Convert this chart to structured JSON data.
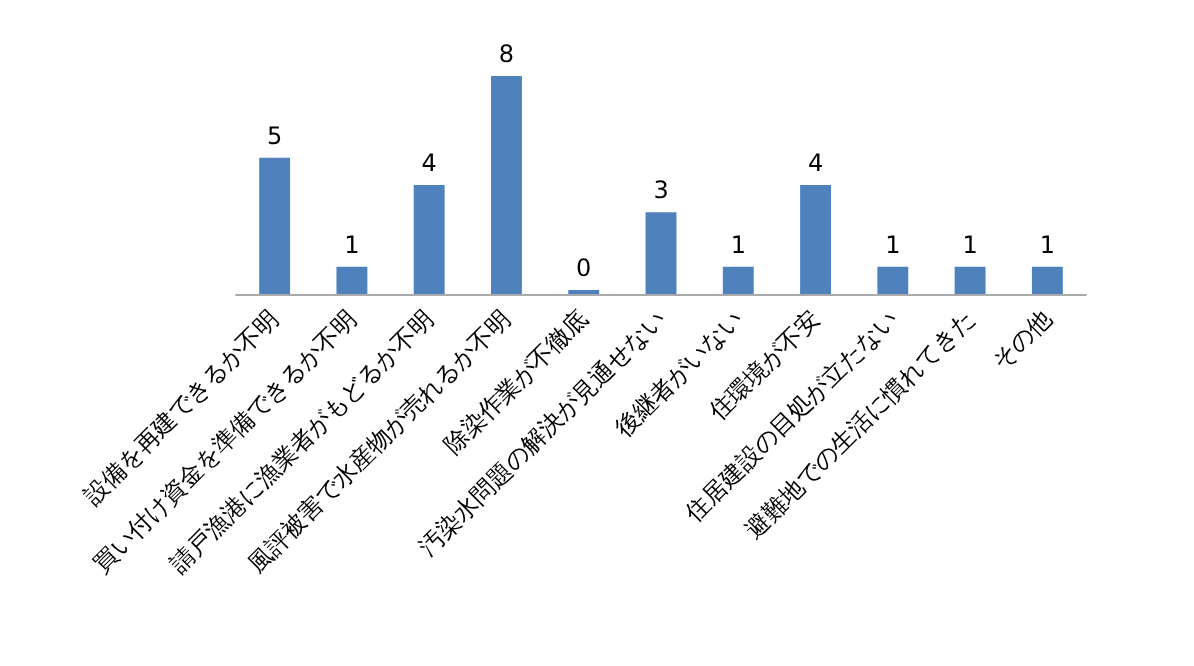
{
  "chart_data": {
    "type": "bar",
    "categories": [
      "設備を再建できるか不明",
      "買い付け資金を準備できるか不明",
      "請戸漁港に漁業者がもどるか不明",
      "風評被害で水産物が売れるか不明",
      "除染作業が不徹底",
      "汚染水問題の解決が見通せない",
      "後継者がいない",
      "住環境が不安",
      "住居建設の目処が立たない",
      "避難地での生活に慣れてきた",
      "その他"
    ],
    "values": [
      5,
      1,
      4,
      8,
      0,
      3,
      1,
      4,
      1,
      1,
      1
    ],
    "color": "#4f81bd",
    "data_labels": true,
    "grid": false
  }
}
